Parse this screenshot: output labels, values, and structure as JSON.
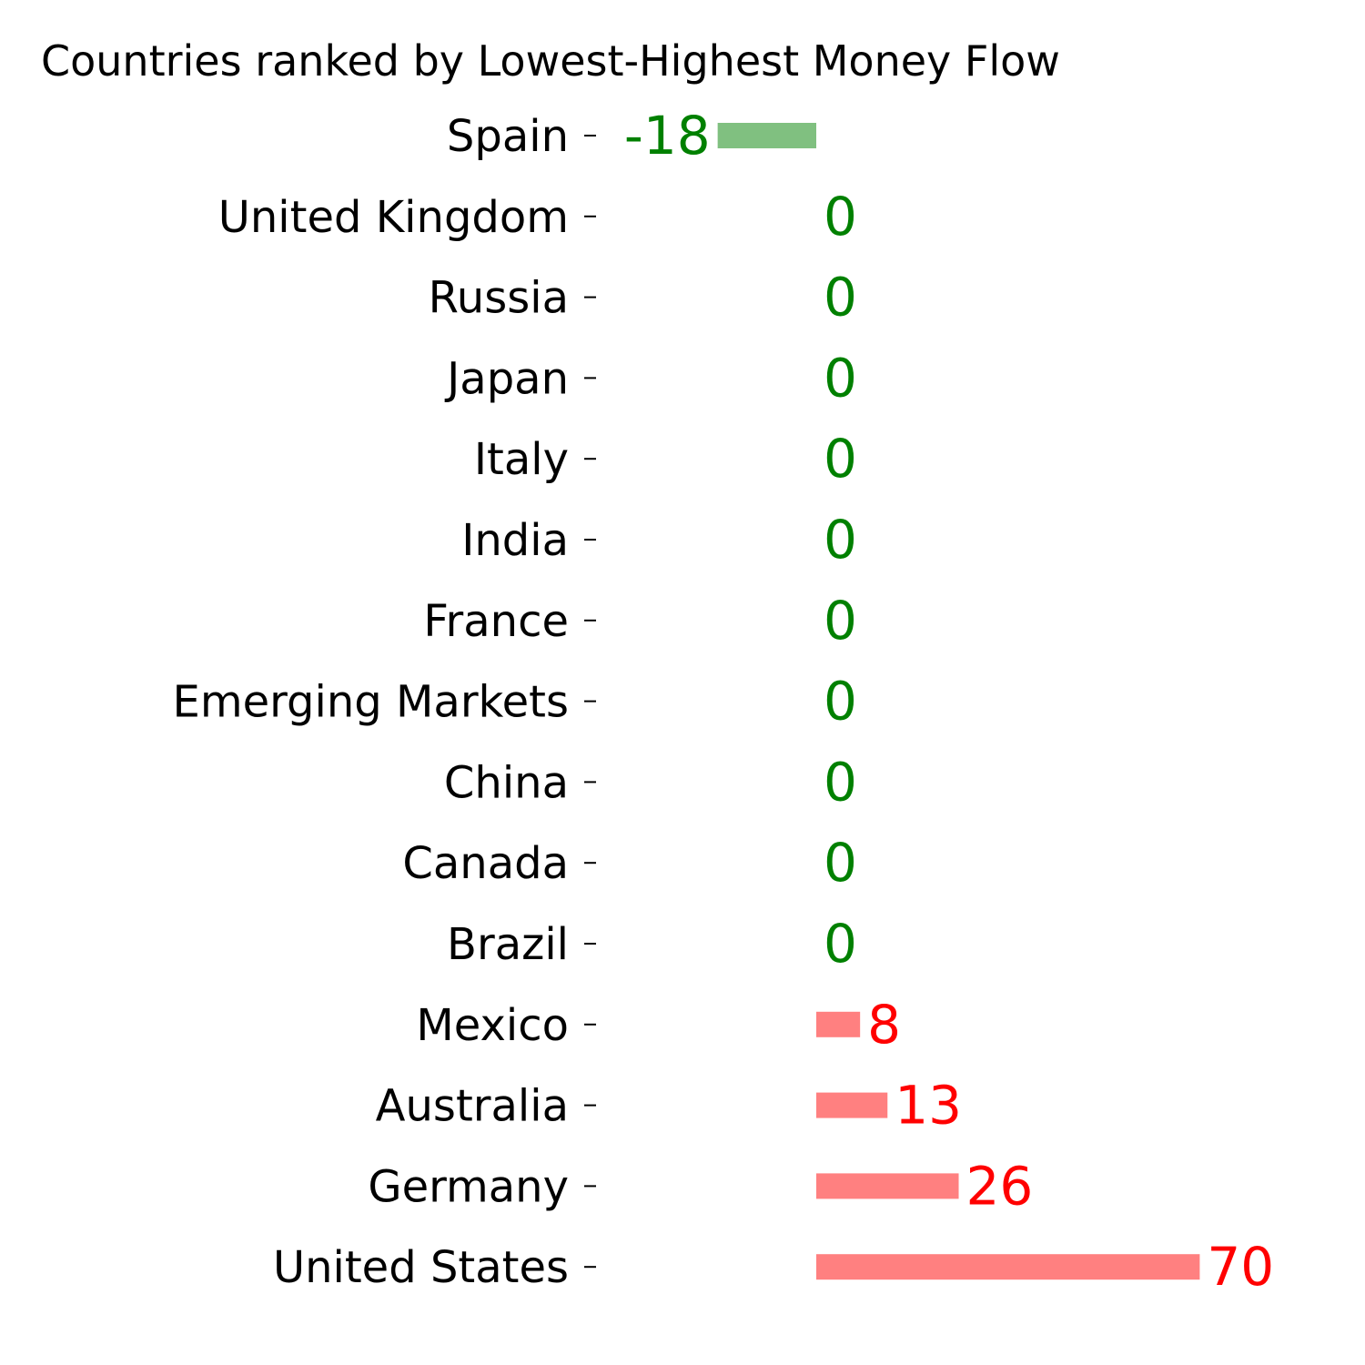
{
  "chart_data": {
    "type": "bar",
    "orientation": "horizontal",
    "title": "Countries ranked by Lowest-Highest Money Flow",
    "xlabel": "",
    "ylabel": "",
    "grid": false,
    "legend": "none",
    "categories": [
      "Spain",
      "United Kingdom",
      "Russia",
      "Japan",
      "Italy",
      "India",
      "France",
      "Emerging Markets",
      "China",
      "Canada",
      "Brazil",
      "Mexico",
      "Australia",
      "Germany",
      "United States"
    ],
    "values": [
      -18,
      0,
      0,
      0,
      0,
      0,
      0,
      0,
      0,
      0,
      0,
      8,
      13,
      26,
      70
    ],
    "data_labels": [
      "-18",
      "0",
      "0",
      "0",
      "0",
      "0",
      "0",
      "0",
      "0",
      "0",
      "0",
      "8",
      "13",
      "26",
      "70"
    ],
    "colors": {
      "negative_bar": "#80c080",
      "positive_bar": "#ff8080",
      "negative_label": "#008000",
      "positive_label": "#ff0000"
    }
  }
}
